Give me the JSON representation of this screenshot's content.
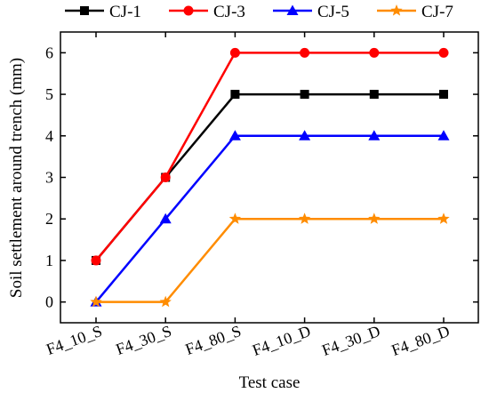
{
  "chart_data": {
    "type": "line",
    "categories": [
      "F4_10_S",
      "F4_30_S",
      "F4_80_S",
      "F4_10_D",
      "F4_30_D",
      "F4_80_D"
    ],
    "xlabel": "Test case",
    "ylabel": "Soil settlement around trench (mm)",
    "ylim": [
      -0.5,
      6.5
    ],
    "yticks": [
      0,
      1,
      2,
      3,
      4,
      5,
      6
    ],
    "grid": false,
    "legend_position": "top",
    "series": [
      {
        "name": "CJ-1",
        "color": "#000000",
        "marker": "square",
        "values": [
          1,
          3,
          5,
          5,
          5,
          5
        ]
      },
      {
        "name": "CJ-3",
        "color": "#ff0000",
        "marker": "circle",
        "values": [
          1,
          3,
          6,
          6,
          6,
          6
        ]
      },
      {
        "name": "CJ-5",
        "color": "#0000ff",
        "marker": "triangle",
        "values": [
          0,
          2,
          4,
          4,
          4,
          4
        ]
      },
      {
        "name": "CJ-7",
        "color": "#ff8c00",
        "marker": "star",
        "values": [
          0,
          0,
          2,
          2,
          2,
          2
        ]
      }
    ]
  }
}
